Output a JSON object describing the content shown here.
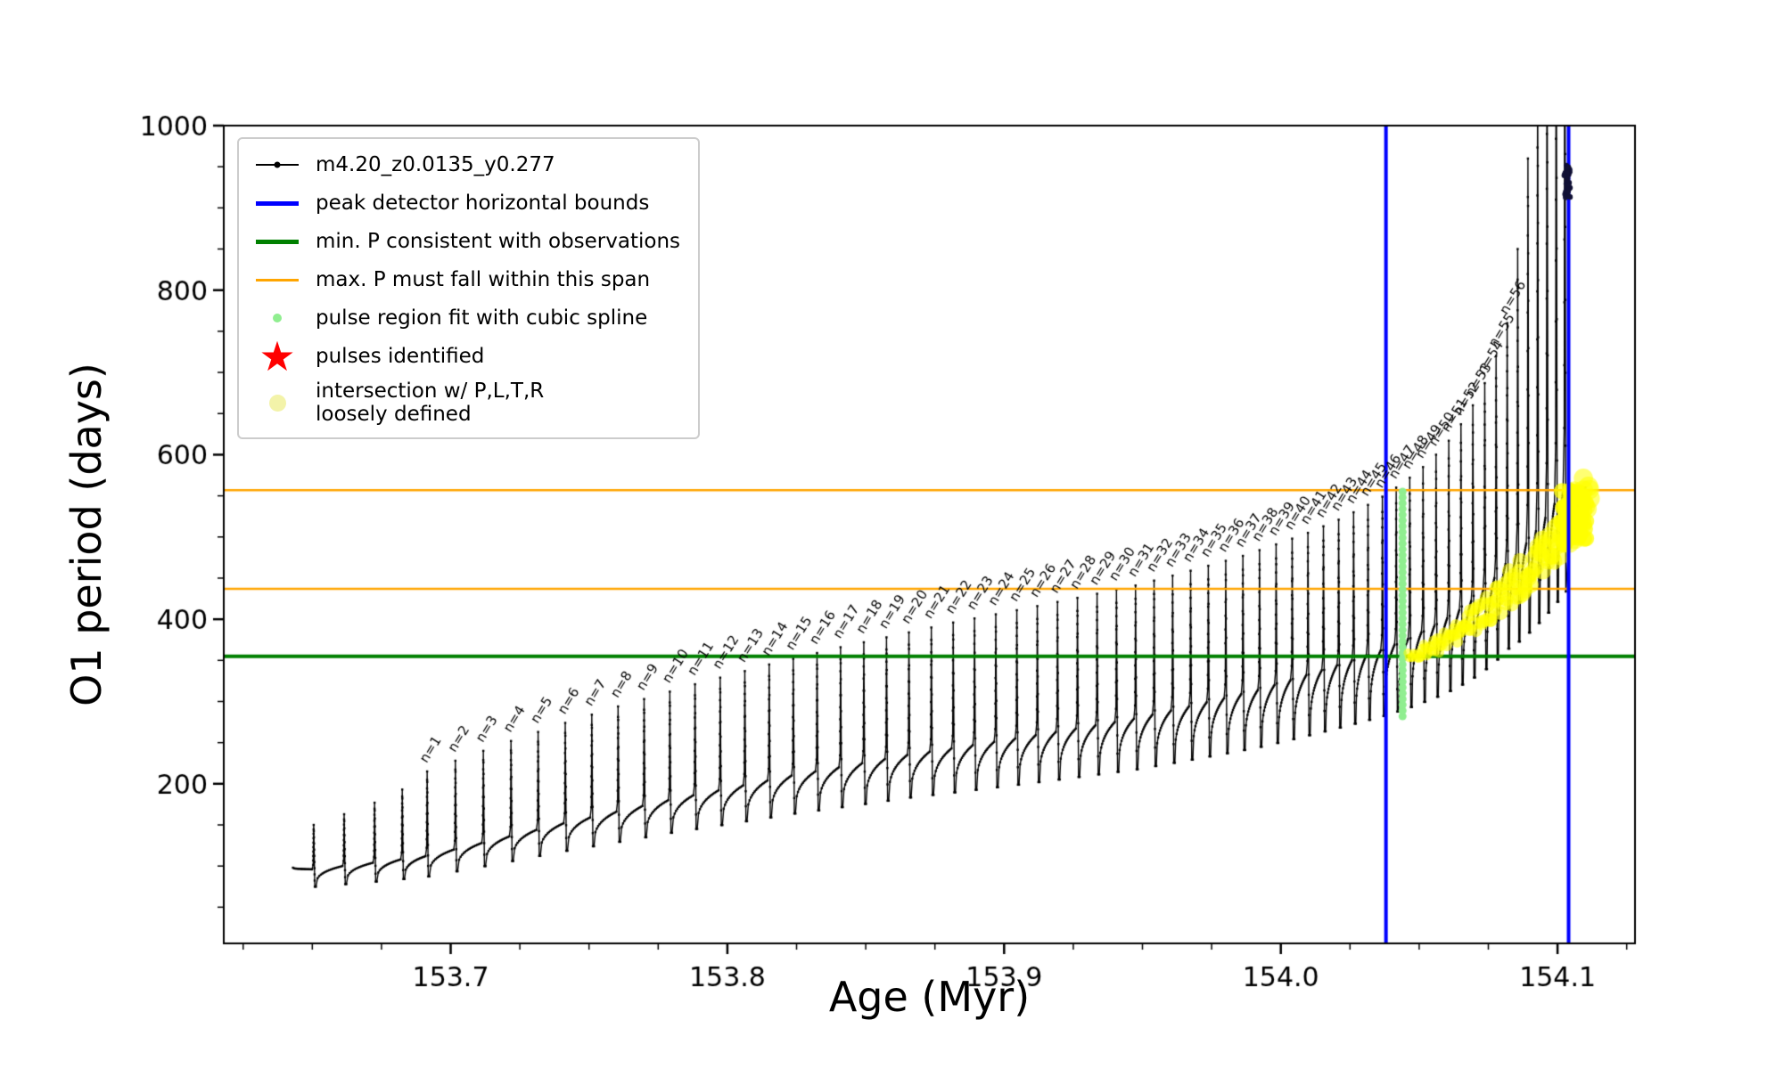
{
  "colors": {
    "track": "#000000",
    "bounds_blue": "#0000ff",
    "min_green": "#008000",
    "span_orange": "#ffa500",
    "spline_green": "#90ee90",
    "pulse_red": "#ff0000",
    "intersect_yellow": "#ffff00",
    "intersect_pale": "#f3f3a9"
  },
  "legend": {
    "items": [
      {
        "label": "m4.20_z0.0135_y0.277"
      },
      {
        "label": "peak detector horizontal bounds"
      },
      {
        "label": "min. P consistent with observations"
      },
      {
        "label": "max. P must fall within this span"
      },
      {
        "label": "pulse region fit with cubic spline"
      },
      {
        "label": "pulses identified"
      },
      {
        "label": "intersection w/ P,L,T,R\nloosely defined"
      }
    ]
  },
  "chart_data": {
    "type": "line",
    "title": "",
    "xlabel": "Age (Myr)",
    "ylabel": "O1 period (days)",
    "xlim": [
      153.618,
      154.128
    ],
    "ylim": [
      6,
      1000
    ],
    "xticks": [
      153.7,
      153.8,
      153.9,
      154.0,
      154.1
    ],
    "xtick_labels": [
      "153.7",
      "153.8",
      "153.9",
      "154.0",
      "154.1"
    ],
    "x_minor_step": 0.025,
    "yticks": [
      200,
      400,
      600,
      800,
      1000
    ],
    "ytick_labels": [
      "200",
      "400",
      "600",
      "800",
      "1000"
    ],
    "y_minor_step": 50,
    "series_label": "m4.20_z0.0135_y0.277",
    "hlines": {
      "green_min_P": 355,
      "orange_span": [
        437,
        557
      ]
    },
    "vlines_blue": [
      154.038,
      154.104
    ],
    "dip_ratio": 0.78,
    "curve_start": [
      153.643,
      98
    ],
    "curve_end": [
      154.11,
      560
    ],
    "pre_pulses": [
      [
        153.6505,
        96,
        150
      ],
      [
        153.6615,
        100,
        163
      ],
      [
        153.6725,
        104,
        177
      ],
      [
        153.6825,
        108,
        193
      ]
    ],
    "pulses": [
      [
        1,
        153.6915,
        112,
        215
      ],
      [
        2,
        153.7017,
        120,
        228
      ],
      [
        3,
        153.7118,
        128,
        240
      ],
      [
        4,
        153.7218,
        136,
        252
      ],
      [
        5,
        153.7316,
        144,
        263
      ],
      [
        6,
        153.7414,
        152,
        274
      ],
      [
        7,
        153.751,
        159,
        284
      ],
      [
        8,
        153.7605,
        166,
        294
      ],
      [
        9,
        153.7699,
        173,
        303
      ],
      [
        10,
        153.7792,
        180,
        312
      ],
      [
        11,
        153.7883,
        186,
        321
      ],
      [
        12,
        153.7974,
        192,
        329
      ],
      [
        13,
        153.8063,
        198,
        337
      ],
      [
        14,
        153.8151,
        204,
        345
      ],
      [
        15,
        153.8238,
        210,
        352
      ],
      [
        16,
        153.8324,
        215,
        359
      ],
      [
        17,
        153.8409,
        220,
        366
      ],
      [
        18,
        153.8493,
        225,
        372
      ],
      [
        19,
        153.8575,
        230,
        378
      ],
      [
        20,
        153.8656,
        235,
        384
      ],
      [
        21,
        153.8737,
        239,
        390
      ],
      [
        22,
        153.8816,
        243,
        396
      ],
      [
        23,
        153.8893,
        247,
        401
      ],
      [
        24,
        153.897,
        251,
        406
      ],
      [
        25,
        153.9046,
        255,
        411
      ],
      [
        26,
        153.912,
        259,
        416
      ],
      [
        27,
        153.9193,
        263,
        421
      ],
      [
        28,
        153.9265,
        267,
        426
      ],
      [
        29,
        153.9336,
        271,
        431
      ],
      [
        30,
        153.9406,
        275,
        436
      ],
      [
        31,
        153.9475,
        279,
        441
      ],
      [
        32,
        153.9542,
        284,
        447
      ],
      [
        33,
        153.9609,
        289,
        453
      ],
      [
        34,
        153.9674,
        294,
        459
      ],
      [
        35,
        153.9738,
        299,
        465
      ],
      [
        36,
        153.9801,
        304,
        471
      ],
      [
        37,
        153.9863,
        309,
        477
      ],
      [
        38,
        153.9923,
        314,
        484
      ],
      [
        39,
        153.9983,
        320,
        491
      ],
      [
        40,
        154.0041,
        326,
        498
      ],
      [
        41,
        154.0098,
        332,
        505
      ],
      [
        42,
        154.0154,
        338,
        513
      ],
      [
        43,
        154.0209,
        344,
        521
      ],
      [
        44,
        154.0263,
        350,
        530
      ],
      [
        45,
        154.0315,
        356,
        539
      ],
      [
        46,
        154.0367,
        362,
        549
      ],
      [
        47,
        154.0417,
        369,
        560
      ],
      [
        48,
        154.0466,
        376,
        572
      ],
      [
        49,
        154.0514,
        384,
        585
      ],
      [
        50,
        154.0561,
        392,
        600
      ],
      [
        51,
        154.0607,
        401,
        617
      ],
      [
        52,
        154.0651,
        411,
        637
      ],
      [
        53,
        154.0694,
        422,
        660
      ],
      [
        54,
        154.0737,
        435,
        687
      ],
      [
        55,
        154.0778,
        450,
        720
      ],
      [
        56,
        154.0818,
        467,
        760
      ]
    ],
    "tail_spikes": [
      [
        154.0856,
        478,
        850
      ],
      [
        154.0893,
        492,
        960
      ],
      [
        154.0928,
        507,
        1090
      ],
      [
        154.0962,
        523,
        1190
      ],
      [
        154.0995,
        540,
        1280
      ],
      [
        154.1026,
        556,
        1320
      ]
    ],
    "spline_dots": {
      "age": 154.044,
      "p_from": 282,
      "p_to": 556,
      "step": 7,
      "radius": 4.5
    },
    "yellow_cluster": {
      "age_from": 154.046,
      "age_to": 154.112,
      "p_from": 356,
      "p_to": 552,
      "count": 150,
      "clump_age": 154.106,
      "clump_p": 525,
      "clump_count": 60
    },
    "blob": {
      "age": 154.1035,
      "period": 932,
      "count": 42
    },
    "label_prefix": "n="
  }
}
